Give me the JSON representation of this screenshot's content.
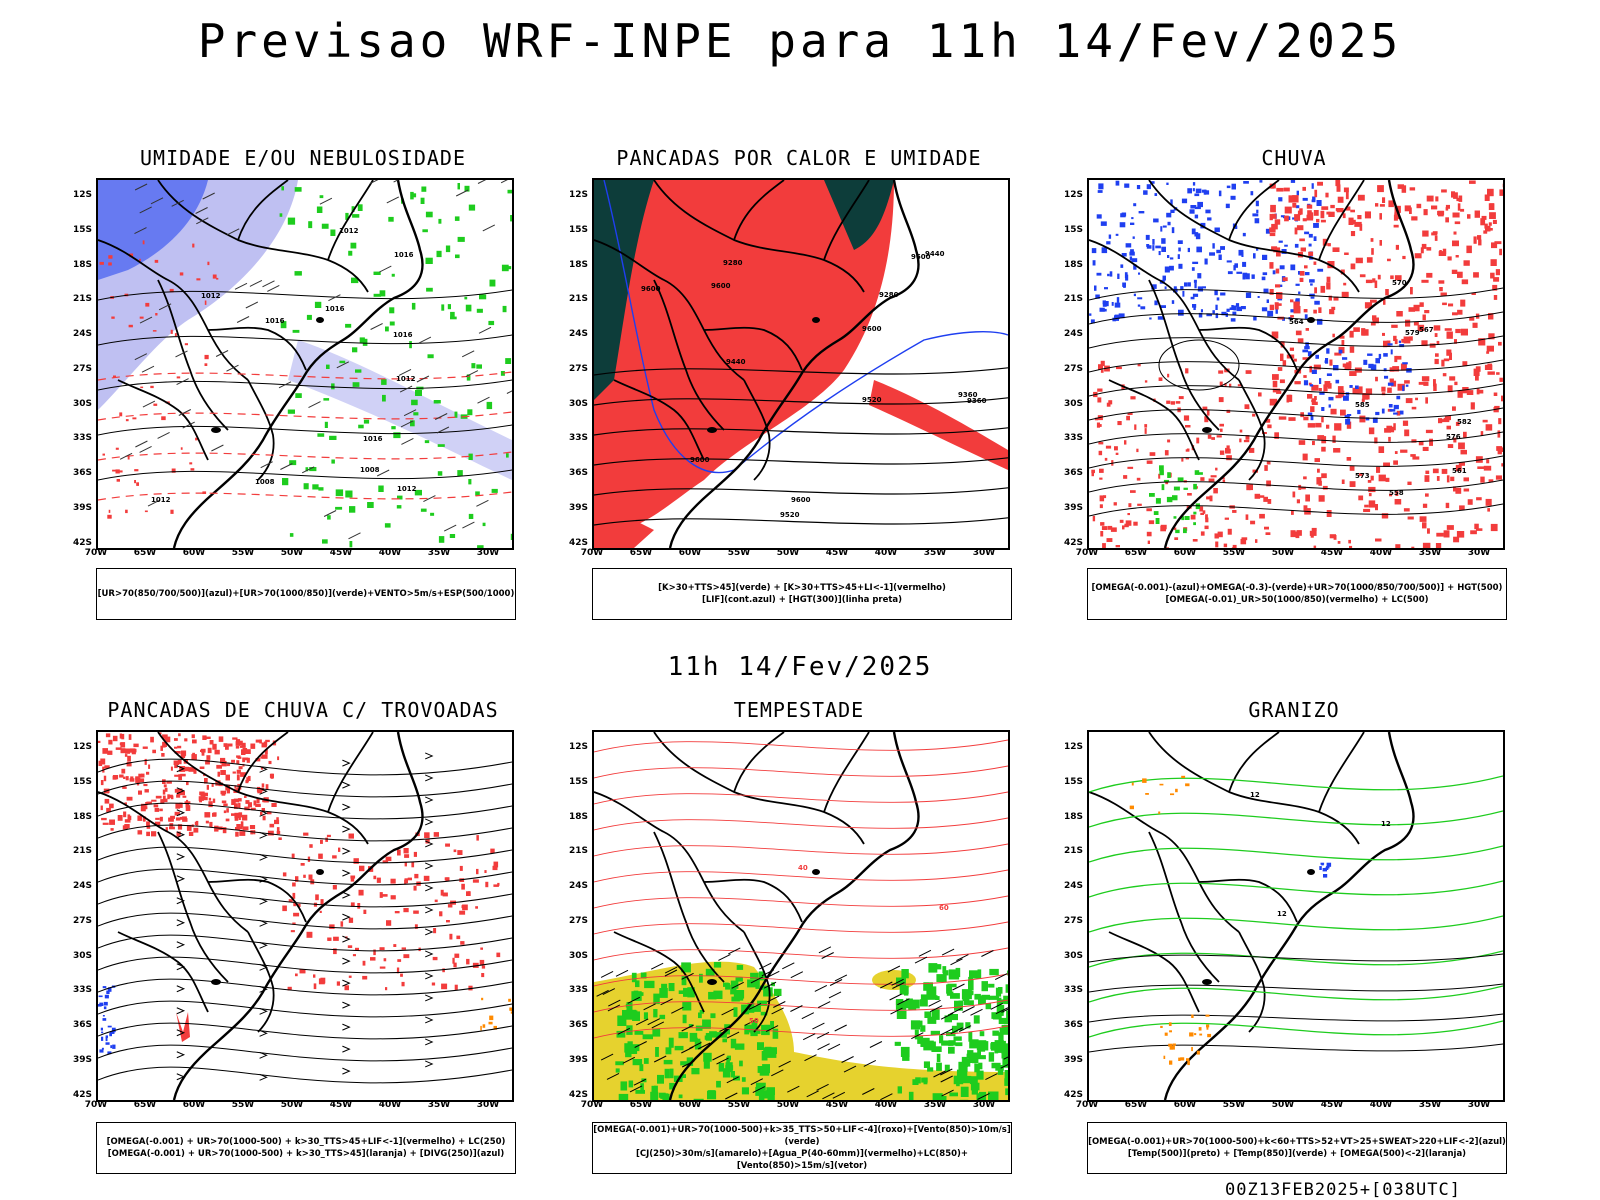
{
  "title": "Previsao WRF-INPE  para 11h 14/Fev/2025",
  "mid_title": "11h 14/Fev/2025",
  "footer": "00Z13FEB2025+[038UTC]",
  "axes": {
    "lat_labels": [
      "12S",
      "15S",
      "18S",
      "21S",
      "24S",
      "27S",
      "30S",
      "33S",
      "36S",
      "39S",
      "42S"
    ],
    "lon_labels": [
      "70W",
      "65W",
      "60W",
      "55W",
      "50W",
      "45W",
      "40W",
      "35W",
      "30W"
    ]
  },
  "colors": {
    "red": "#f23c3c",
    "green": "#1ecc1e",
    "blue": "#1f3ff0",
    "purple": "#8a8ce8",
    "darkgreen": "#0d3d3a",
    "yellow": "#e6d22e",
    "orange": "#ff8a00"
  },
  "panels": [
    {
      "title": "UMIDADE E/OU NEBULOSIDADE",
      "legend": [
        "[UR>70(850/700/500)](azul)+[UR>70(1000/850)](verde)+VENTO>5m/s+ESP(500/1000)"
      ],
      "contour_labels": [
        "1016",
        "1016",
        "1012",
        "1012",
        "1012",
        "1008",
        "1008",
        "1016",
        "1016",
        "1012",
        "1016",
        "1012"
      ]
    },
    {
      "title": "PANCADAS POR CALOR E UMIDADE",
      "legend": [
        "[K>30+TTS>45](verde) + [K>30+TTS>45+LI<-1](vermelho)",
        "[LIF](cont.azul) + [HGT(300)](linha preta)"
      ],
      "contour_labels": [
        "9600",
        "9600",
        "9600",
        "9600",
        "9600",
        "9520",
        "9520",
        "9440",
        "9440",
        "9360",
        "9360",
        "9280",
        "9280",
        "9600"
      ]
    },
    {
      "title": "CHUVA",
      "legend": [
        "[OMEGA(-0.001)-(azul)+OMEGA(-0.3)-(verde)+UR>70(1000/850/700/500)] + HGT(500)",
        "[OMEGA(-0.01)_UR>50(1000/850)(vermelho) + LC(500)"
      ],
      "contour_labels": [
        "585",
        "582",
        "579",
        "576",
        "573",
        "570",
        "567",
        "564",
        "561",
        "558"
      ]
    },
    {
      "title": "PANCADAS DE CHUVA C/ TROVOADAS",
      "legend": [
        "[OMEGA(-0.001) + UR>70(1000-500) + k>30_TTS>45+LIF<-1](vermelho) + LC(250)",
        "[OMEGA(-0.001) + UR>70(1000-500) + k>30_TTS>45](laranja) + [DIVG(250)](azul)"
      ]
    },
    {
      "title": "TEMPESTADE",
      "legend": [
        "[OMEGA(-0.001)+UR>70(1000-500)+k>35_TTS>50+LIF<-4](roxo)+[Vento(850)>10m/s](verde)",
        "[CJ(250)>30m/s](amarelo)+[Agua_P(40-60mm)](vermelho)+LC(850)+[Vento(850)>15m/s](vetor)"
      ],
      "contour_labels": [
        "50",
        "40",
        "60"
      ]
    },
    {
      "title": "GRANIZO",
      "legend": [
        "[OMEGA(-0.001)+UR>70(1000-500)+k<60+TTS>52+VT>25+SWEAT>220+LIF<-2](azul)",
        "[Temp(500)](preto) + [Temp(850)](verde) + [OMEGA(500)<-2](laranja)"
      ],
      "contour_labels": [
        "12",
        "12",
        "12"
      ]
    }
  ]
}
